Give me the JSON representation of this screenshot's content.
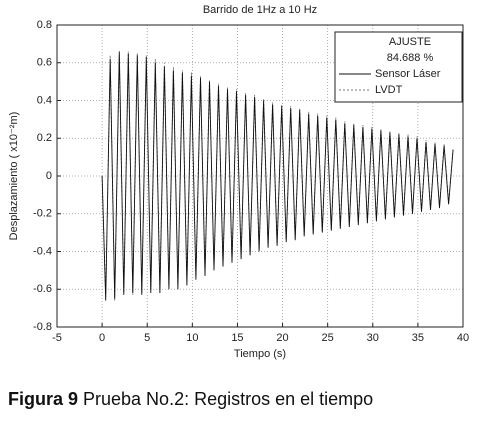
{
  "chart_data": {
    "type": "line",
    "title": "Barrido de 1Hz a 10 Hz",
    "x_label": "Tiempo (s)",
    "y_label": "Desplazamiento ( x10⁻²m)",
    "legend_title": "AJUSTE",
    "annotation": "84.688 %",
    "x": [
      0,
      0.4,
      0.9,
      1.4,
      1.9,
      2.4,
      2.9,
      3.4,
      3.9,
      4.4,
      4.9,
      5.4,
      5.9,
      6.4,
      6.9,
      7.4,
      7.9,
      8.4,
      8.9,
      9.4,
      9.9,
      10.4,
      10.9,
      11.4,
      11.9,
      12.4,
      12.9,
      13.4,
      13.9,
      14.4,
      14.9,
      15.4,
      15.9,
      16.4,
      16.9,
      17.4,
      17.9,
      18.4,
      18.9,
      19.4,
      19.9,
      20.4,
      20.9,
      21.4,
      21.9,
      22.4,
      22.9,
      23.4,
      23.9,
      24.4,
      24.9,
      25.4,
      25.9,
      26.4,
      26.9,
      27.4,
      27.9,
      28.4,
      28.9,
      29.4,
      29.9,
      30.4,
      30.9,
      31.4,
      31.9,
      32.4,
      32.9,
      33.4,
      33.9,
      34.4,
      34.9,
      35.4,
      35.9,
      36.4,
      36.9,
      37.4,
      37.9,
      38.4,
      38.9
    ],
    "series": [
      {
        "name": "Sensor Láser",
        "color": "#111111",
        "dash": "none",
        "values": [
          0,
          -0.66,
          0.62,
          -0.65,
          0.66,
          -0.63,
          0.65,
          -0.62,
          0.64,
          -0.63,
          0.63,
          -0.62,
          0.6,
          -0.62,
          0.58,
          -0.6,
          0.56,
          -0.6,
          0.55,
          -0.58,
          0.53,
          -0.55,
          0.52,
          -0.53,
          0.5,
          -0.5,
          0.48,
          -0.48,
          0.46,
          -0.46,
          0.45,
          -0.44,
          0.43,
          -0.42,
          0.42,
          -0.4,
          0.4,
          -0.38,
          0.38,
          -0.37,
          0.37,
          -0.35,
          0.36,
          -0.34,
          0.35,
          -0.32,
          0.33,
          -0.31,
          0.32,
          -0.3,
          0.31,
          -0.29,
          0.3,
          -0.28,
          0.28,
          -0.27,
          0.27,
          -0.26,
          0.26,
          -0.25,
          0.25,
          -0.24,
          0.24,
          -0.23,
          0.23,
          -0.22,
          0.22,
          -0.21,
          0.21,
          -0.2,
          0.2,
          -0.19,
          0.18,
          -0.18,
          0.17,
          -0.17,
          0.16,
          -0.15,
          0.14
        ]
      },
      {
        "name": "LVDT",
        "color": "#777777",
        "dash": "2,2",
        "values": [
          0,
          -0.64,
          0.64,
          -0.66,
          0.64,
          -0.62,
          0.66,
          -0.63,
          0.65,
          -0.62,
          0.64,
          -0.6,
          0.62,
          -0.6,
          0.6,
          -0.58,
          0.58,
          -0.57,
          0.56,
          -0.56,
          0.55,
          -0.53,
          0.53,
          -0.51,
          0.51,
          -0.49,
          0.49,
          -0.47,
          0.47,
          -0.45,
          0.46,
          -0.43,
          0.44,
          -0.41,
          0.43,
          -0.39,
          0.41,
          -0.37,
          0.39,
          -0.36,
          0.38,
          -0.34,
          0.37,
          -0.33,
          0.36,
          -0.31,
          0.34,
          -0.3,
          0.33,
          -0.29,
          0.32,
          -0.28,
          0.31,
          -0.27,
          0.29,
          -0.26,
          0.28,
          -0.25,
          0.27,
          -0.24,
          0.26,
          -0.23,
          0.25,
          -0.22,
          0.24,
          -0.21,
          0.23,
          -0.2,
          0.22,
          -0.19,
          0.21,
          -0.18,
          0.19,
          -0.17,
          0.18,
          -0.16,
          0.17,
          -0.14,
          0.15
        ]
      }
    ],
    "xlim": [
      -5,
      40
    ],
    "xticks": [
      -5,
      0,
      5,
      10,
      15,
      20,
      25,
      30,
      35,
      40
    ],
    "ylim": [
      -0.8,
      0.8
    ],
    "yticks": [
      -0.8,
      -0.6,
      -0.4,
      -0.2,
      0,
      0.2,
      0.4,
      0.6,
      0.8
    ],
    "grid": true,
    "legend_position": "upper right"
  },
  "caption": {
    "label": "Figura 9",
    "text": "Prueba No.2: Registros en el tiempo"
  }
}
